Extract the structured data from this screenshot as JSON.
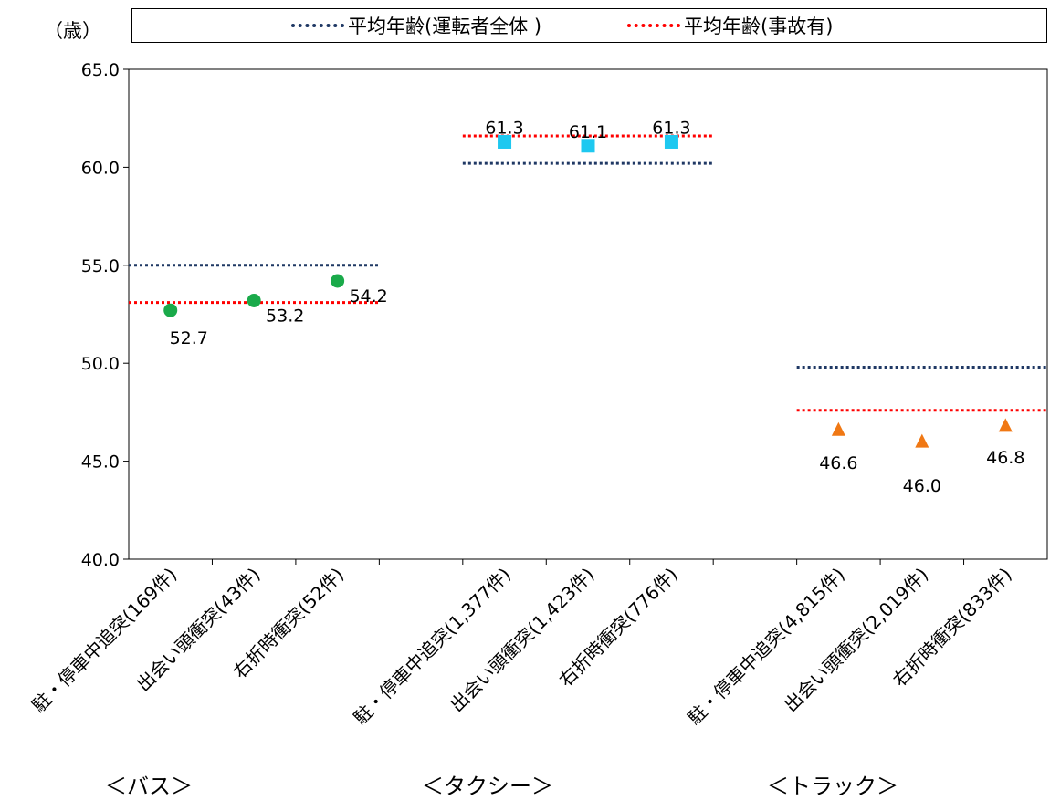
{
  "chart_data": {
    "type": "scatter",
    "y_unit_label": "（歳）",
    "ylim": [
      40,
      65
    ],
    "yticks": [
      "40.0",
      "45.0",
      "50.0",
      "55.0",
      "60.0",
      "65.0"
    ],
    "grid": false,
    "legend_position": "top",
    "legend": [
      {
        "label": "平均年齢(運転者全体 )",
        "color": "#1f3864",
        "style": "dotted"
      },
      {
        "label": "平均年齢(事故有)",
        "color": "#ff0000",
        "style": "dotted"
      }
    ],
    "groups": [
      {
        "name": "＜バス＞",
        "marker": "circle",
        "color": "#1aaa4a",
        "avg_all": 55.0,
        "avg_accident": 53.1,
        "categories": [
          "駐・停車中追突(169件)",
          "出会い頭衝突(43件)",
          "右折時衝突(52件)"
        ],
        "values": [
          52.7,
          53.2,
          54.2
        ],
        "labels": [
          "52.7",
          "53.2",
          "54.2"
        ]
      },
      {
        "name": "＜タクシー＞",
        "marker": "square",
        "color": "#1ec8f0",
        "avg_all": 60.2,
        "avg_accident": 61.6,
        "categories": [
          "駐・停車中追突(1,377件)",
          "出会い頭衝突(1,423件)",
          "右折時衝突(776件)"
        ],
        "values": [
          61.3,
          61.1,
          61.3
        ],
        "labels": [
          "61.3",
          "61.1",
          "61.3"
        ]
      },
      {
        "name": "＜トラック＞",
        "marker": "triangle",
        "color": "#f07814",
        "avg_all": 49.8,
        "avg_accident": 47.6,
        "categories": [
          "駐・停車中追突(4,815件)",
          "出会い頭衝突(2,019件)",
          "右折時衝突(833件)"
        ],
        "values": [
          46.6,
          46.0,
          46.8
        ],
        "labels": [
          "46.6",
          "46.0",
          "46.8"
        ]
      }
    ]
  }
}
